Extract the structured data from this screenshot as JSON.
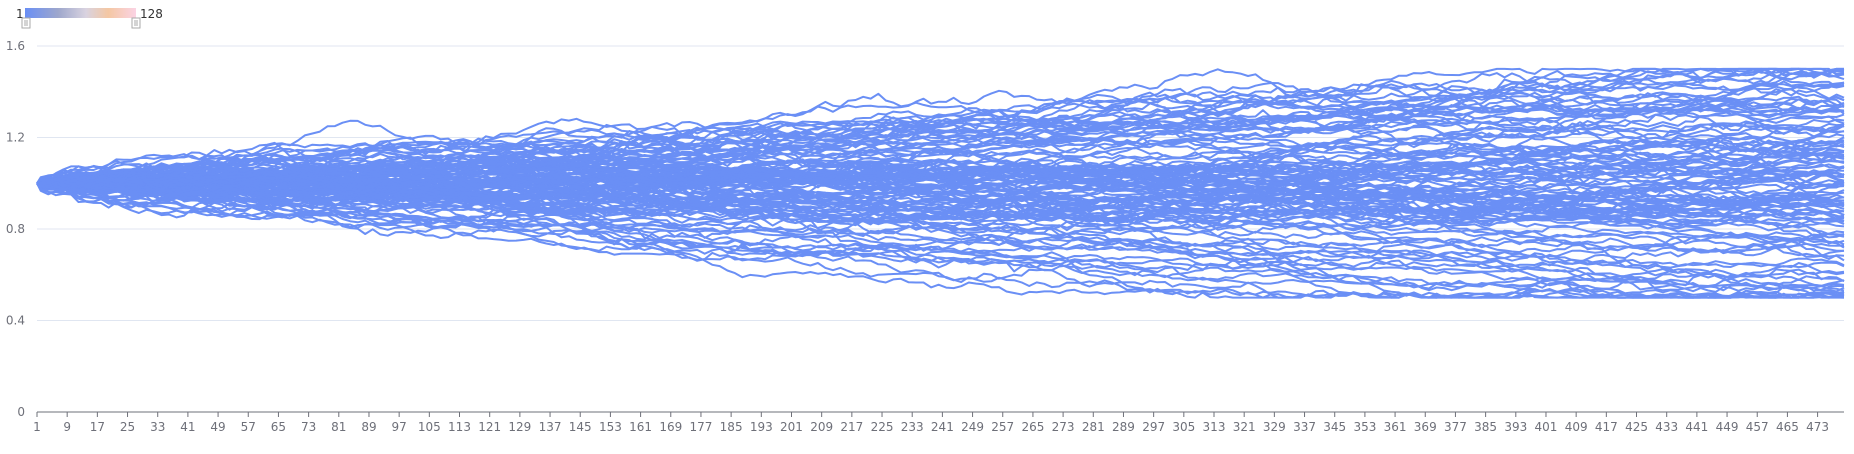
{
  "chart_data": {
    "type": "line",
    "title": "",
    "xlabel": "",
    "ylabel": "",
    "ylim": [
      0,
      1.6
    ],
    "yticks": [
      0,
      0.4,
      0.8,
      1.2,
      1.6
    ],
    "ytick_labels": [
      "0",
      "0.4",
      "0.8",
      "1.2",
      "1.6"
    ],
    "x_range": [
      1,
      480
    ],
    "xtick_labels": [
      "1",
      "9",
      "17",
      "25",
      "33",
      "41",
      "49",
      "57",
      "65",
      "73",
      "81",
      "89",
      "97",
      "105",
      "113",
      "121",
      "129",
      "137",
      "145",
      "153",
      "161",
      "169",
      "177",
      "185",
      "193",
      "201",
      "209",
      "217",
      "225",
      "233",
      "241",
      "249",
      "257",
      "265",
      "273",
      "281",
      "289",
      "297",
      "305",
      "313",
      "321",
      "329",
      "337",
      "345",
      "353",
      "361",
      "369",
      "377",
      "385",
      "393",
      "401",
      "409",
      "417",
      "425",
      "433",
      "441",
      "449",
      "457",
      "465",
      "473"
    ],
    "grid": true,
    "legend": "none",
    "series_count": 128,
    "series_color": "#6a8ff5",
    "start_value": 1.0,
    "end_value_range": [
      0.53,
      1.38
    ],
    "visual_map": {
      "min_label": "1",
      "max_label": "128",
      "colors": [
        "#6a8ff5",
        "#b8c2e6",
        "#f4c7a3",
        "#f7b6c8",
        "#fbd3e4"
      ]
    }
  }
}
